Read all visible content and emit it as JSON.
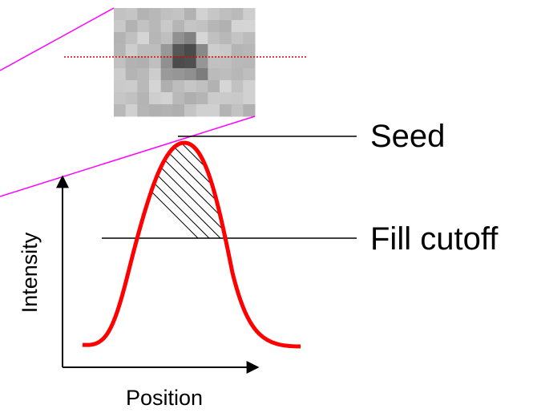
{
  "labels": {
    "seed": "Seed",
    "fill_cutoff": "Fill cutoff",
    "y_axis": "Intensity",
    "x_axis": "Position"
  }
}
